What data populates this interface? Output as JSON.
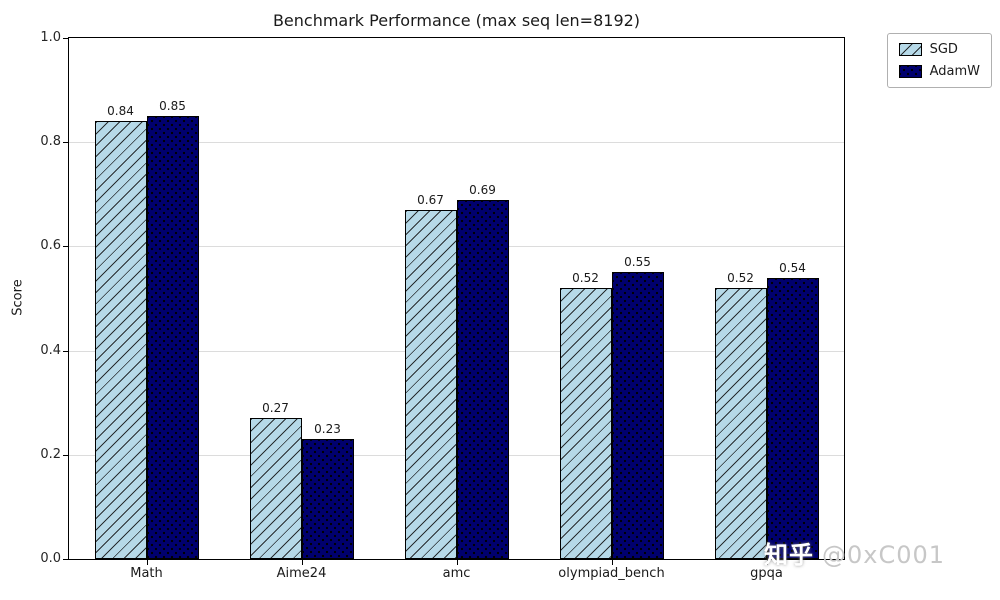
{
  "watermark": {
    "brand": "知乎",
    "handle": "@0xC001"
  },
  "chart_data": {
    "type": "bar",
    "title": "Benchmark Performance (max seq len=8192)",
    "xlabel": "",
    "ylabel": "Score",
    "categories": [
      "Math",
      "Aime24",
      "amc",
      "olympiad_bench",
      "gpqa"
    ],
    "series": [
      {
        "name": "SGD",
        "color": "#b6d9e8",
        "hatch": "diagonal",
        "values": [
          0.84,
          0.27,
          0.67,
          0.52,
          0.52
        ]
      },
      {
        "name": "AdamW",
        "color": "#00006e",
        "hatch": "dots",
        "values": [
          0.85,
          0.23,
          0.69,
          0.55,
          0.54
        ]
      }
    ],
    "ylim": [
      0.0,
      1.0
    ],
    "yticks": [
      0.0,
      0.2,
      0.4,
      0.6,
      0.8,
      1.0
    ],
    "grid": true,
    "legend_position": "outside-upper-right"
  }
}
